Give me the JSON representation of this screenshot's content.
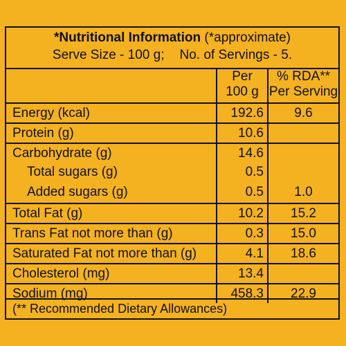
{
  "header": {
    "title_bold": "*Nutritional Information",
    "title_rest": " (*approximate)",
    "serve_size": "Serve Size - 100 g;",
    "servings": "No. of Servings - 5."
  },
  "columns": {
    "per_line1": "Per",
    "per_line2": "100 g",
    "rda_line1": "% RDA**",
    "rda_line2": "Per Serving"
  },
  "rows": [
    {
      "label": "Energy (kcal)",
      "per100g": "192.6",
      "rda": "9.6"
    },
    {
      "label": "Protein (g)",
      "per100g": "10.6",
      "rda": ""
    },
    {
      "label": "Carbohydrate (g)",
      "per100g": "14.6",
      "rda": ""
    },
    {
      "label": "Total sugars (g)",
      "per100g": "0.5",
      "rda": ""
    },
    {
      "label": "Added sugars (g)",
      "per100g": "0.5",
      "rda": "1.0"
    },
    {
      "label": "Total Fat (g)",
      "per100g": "10.2",
      "rda": "15.2"
    },
    {
      "label": "Trans Fat not more than (g)",
      "per100g": "0.3",
      "rda": "15.0"
    },
    {
      "label": "Saturated Fat not more than (g)",
      "per100g": "4.1",
      "rda": "18.6"
    },
    {
      "label": "Cholesterol (mg)",
      "per100g": "13.4",
      "rda": ""
    },
    {
      "label": "Sodium (mg)",
      "per100g": "458.3",
      "rda": "22.9"
    }
  ],
  "footer": {
    "note": "(** Recommended Dietary Allowances)"
  },
  "colors": {
    "background": "#f4b120",
    "text": "#111111"
  }
}
